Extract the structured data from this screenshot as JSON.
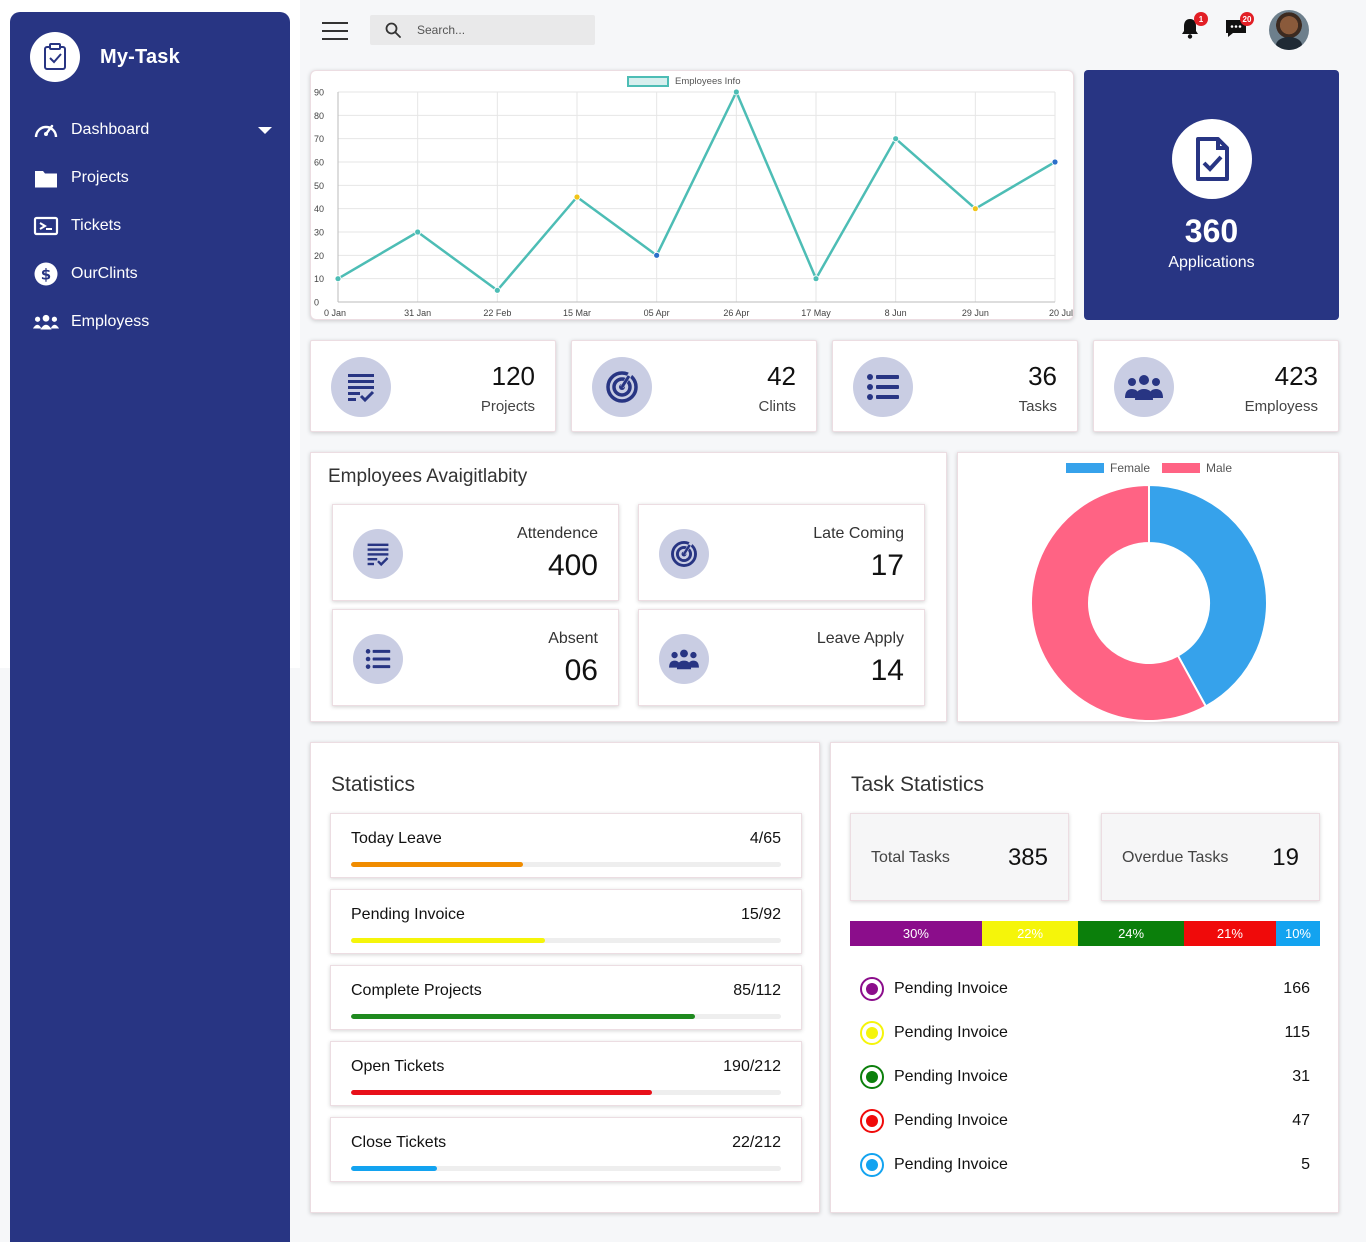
{
  "app": {
    "name": "My-Task"
  },
  "sidebar": {
    "items": [
      {
        "label": "Dashboard",
        "icon": "gauge-icon",
        "has_caret": true
      },
      {
        "label": "Projects",
        "icon": "folder-icon"
      },
      {
        "label": "Tickets",
        "icon": "ticket-icon"
      },
      {
        "label": "OurClints",
        "icon": "dollar-icon"
      },
      {
        "label": "Employess",
        "icon": "users-icon"
      }
    ]
  },
  "header": {
    "search_placeholder": "Search...",
    "notifications_count": "1",
    "messages_count": "20"
  },
  "chart_data": {
    "type": "line",
    "title": "",
    "legend": "Employees Info",
    "categories": [
      "0 Jan",
      "31 Jan",
      "22 Feb",
      "15 Mar",
      "05 Apr",
      "26 Apr",
      "17 May",
      "8 Jun",
      "29 Jun",
      "20 Jul"
    ],
    "values": [
      10,
      30,
      5,
      45,
      20,
      90,
      10,
      70,
      40,
      60
    ],
    "point_colors": [
      "#4dbdb5",
      "#4dbdb5",
      "#4dbdb5",
      "#f0c419",
      "#2a6fc9",
      "#4dbdb5",
      "#4dbdb5",
      "#4dbdb5",
      "#f0c419",
      "#2a6fc9"
    ],
    "ylim": [
      0,
      90
    ],
    "yticks": [
      0,
      10,
      20,
      30,
      40,
      50,
      60,
      70,
      80,
      90
    ],
    "line_color": "#4dbdb5",
    "grid": true
  },
  "applications": {
    "value": "360",
    "label": "Applications"
  },
  "stats": [
    {
      "value": "120",
      "label": "Projects",
      "icon": "checklist-icon"
    },
    {
      "value": "42",
      "label": "Clints",
      "icon": "radar-icon"
    },
    {
      "value": "36",
      "label": "Tasks",
      "icon": "list-icon"
    },
    {
      "value": "423",
      "label": "Employess",
      "icon": "group-icon"
    }
  ],
  "availability": {
    "title": "Employees Avaigitlabity",
    "items": [
      {
        "label": "Attendence",
        "value": "400",
        "icon": "checklist-icon"
      },
      {
        "label": "Late Coming",
        "value": "17",
        "icon": "radar-icon"
      },
      {
        "label": "Absent",
        "value": "06",
        "icon": "list-icon"
      },
      {
        "label": "Leave Apply",
        "value": "14",
        "icon": "group-icon"
      }
    ]
  },
  "gender_chart": {
    "type": "pie",
    "labels": [
      "Female",
      "Male"
    ],
    "values": [
      42,
      58
    ],
    "colors": [
      "#36a2eb",
      "#ff6384"
    ]
  },
  "statistics": {
    "title": "Statistics",
    "rows": [
      {
        "label": "Today Leave",
        "value": "4/65",
        "fraction": 0.4,
        "color": "#f08c00"
      },
      {
        "label": "Pending Invoice",
        "value": "15/92",
        "fraction": 0.45,
        "color": "#f5f50a"
      },
      {
        "label": "Complete Projects",
        "value": "85/112",
        "fraction": 0.8,
        "color": "#1f8a1f"
      },
      {
        "label": "Open Tickets",
        "value": "190/212",
        "fraction": 0.7,
        "color": "#e8101a"
      },
      {
        "label": "Close Tickets",
        "value": "22/212",
        "fraction": 0.2,
        "color": "#13a3f0"
      }
    ]
  },
  "task_statistics": {
    "title": "Task Statistics",
    "total": {
      "label": "Total Tasks",
      "value": "385"
    },
    "overdue": {
      "label": "Overdue Tasks",
      "value": "19"
    },
    "segments": [
      {
        "label": "30%",
        "percent": 30,
        "color": "#8b0d8b",
        "text_color": "#ffffff"
      },
      {
        "label": "22%",
        "percent": 22,
        "color": "#f5f50a",
        "text_color": "#ffffff"
      },
      {
        "label": "24%",
        "percent": 24,
        "color": "#0b7f0b",
        "text_color": "#ffffff"
      },
      {
        "label": "21%",
        "percent": 21,
        "color": "#f00a0a",
        "text_color": "#ffffff"
      },
      {
        "label": "10%",
        "percent": 10,
        "color": "#13a3f0",
        "text_color": "#ffffff"
      }
    ],
    "legend": [
      {
        "label": "Pending Invoice",
        "value": "166",
        "color": "#8b0d8b"
      },
      {
        "label": "Pending Invoice",
        "value": "115",
        "color": "#f5f50a"
      },
      {
        "label": "Pending Invoice",
        "value": "31",
        "color": "#0b7f0b"
      },
      {
        "label": "Pending Invoice",
        "value": "47",
        "color": "#f00a0a"
      },
      {
        "label": "Pending Invoice",
        "value": "5",
        "color": "#13a3f0"
      }
    ]
  }
}
